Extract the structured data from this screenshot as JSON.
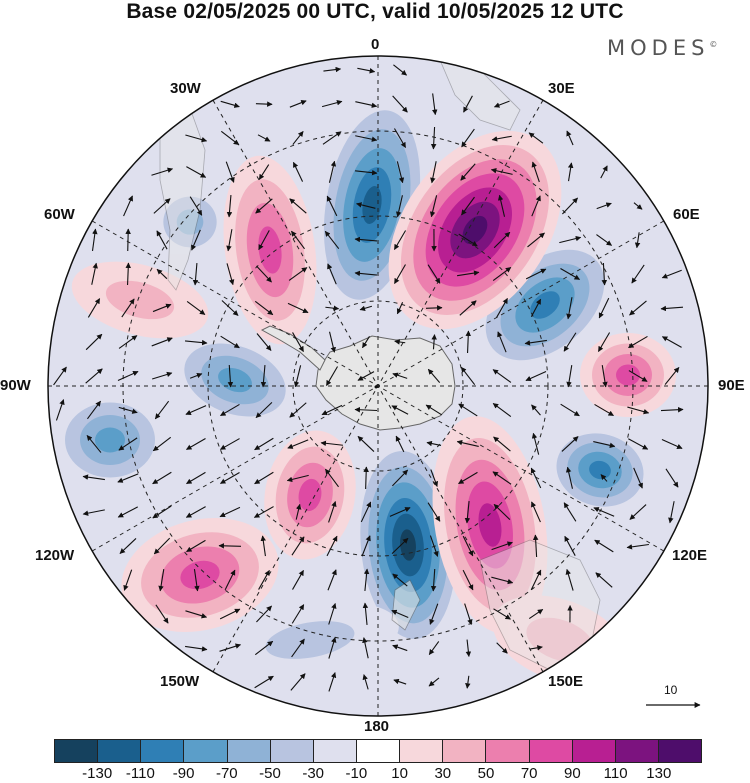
{
  "title": "Base 02/05/2025 00 UTC, valid 10/05/2025 12 UTC",
  "logo": "MODES",
  "logo_mark": "©",
  "longitude_labels": [
    "0",
    "30E",
    "60E",
    "90E",
    "120E",
    "150E",
    "180",
    "150W",
    "120W",
    "90W",
    "60W",
    "30W"
  ],
  "reference_vector_label": "10",
  "colorbar": {
    "tick_labels": [
      "-130",
      "-110",
      "-90",
      "-70",
      "-50",
      "-30",
      "-10",
      "10",
      "30",
      "50",
      "70",
      "90",
      "110",
      "130"
    ],
    "colors": [
      "#15415e",
      "#1a5f8d",
      "#2f7fb5",
      "#5b9ec9",
      "#8fb2d6",
      "#b8c4e0",
      "#dfe0ee",
      "#ffffff",
      "#f7d8dc",
      "#f2b3c2",
      "#ec7fae",
      "#de4aa3",
      "#b81f92",
      "#7c137f",
      "#4e0d6b"
    ]
  },
  "map_colors": {
    "land": "#e6e6e6",
    "coast": "#666666",
    "grid": "#222222",
    "vector": "#111111"
  }
}
